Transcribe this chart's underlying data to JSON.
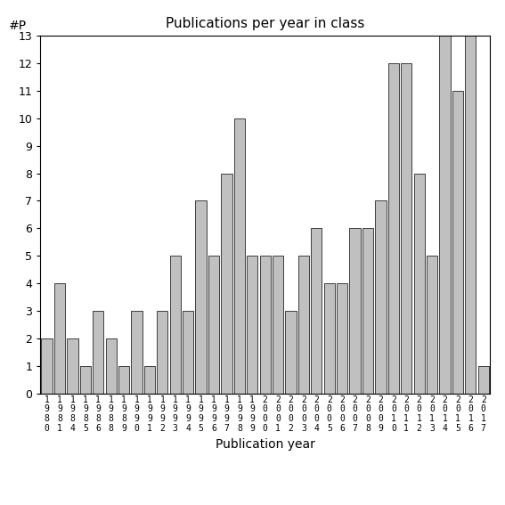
{
  "title": "Publications per year in class",
  "xlabel": "Publication year",
  "ylabel": "#P",
  "bar_color": "#c0c0c0",
  "bar_edge_color": "#000000",
  "background_color": "#ffffff",
  "ylim": [
    0,
    13
  ],
  "yticks": [
    0,
    1,
    2,
    3,
    4,
    5,
    6,
    7,
    8,
    9,
    10,
    11,
    12,
    13
  ],
  "years": [
    1980,
    1981,
    1984,
    1985,
    1986,
    1988,
    1989,
    1990,
    1991,
    1992,
    1993,
    1994,
    1995,
    1996,
    1997,
    1998,
    1999,
    2000,
    2001,
    2002,
    2003,
    2004,
    2005,
    2006,
    2007,
    2008,
    2009,
    2010,
    2011,
    2012,
    2013,
    2014,
    2015,
    2016,
    2017
  ],
  "values": [
    2,
    4,
    2,
    1,
    3,
    2,
    1,
    3,
    1,
    3,
    5,
    3,
    7,
    5,
    8,
    10,
    5,
    5,
    5,
    3,
    5,
    6,
    4,
    4,
    6,
    6,
    7,
    12,
    12,
    8,
    5,
    13,
    11,
    13,
    1
  ],
  "figsize": [
    5.67,
    5.67
  ],
  "dpi": 100,
  "title_fontsize": 11,
  "xlabel_fontsize": 10,
  "tick_fontsize": 7,
  "ytick_fontsize": 9
}
